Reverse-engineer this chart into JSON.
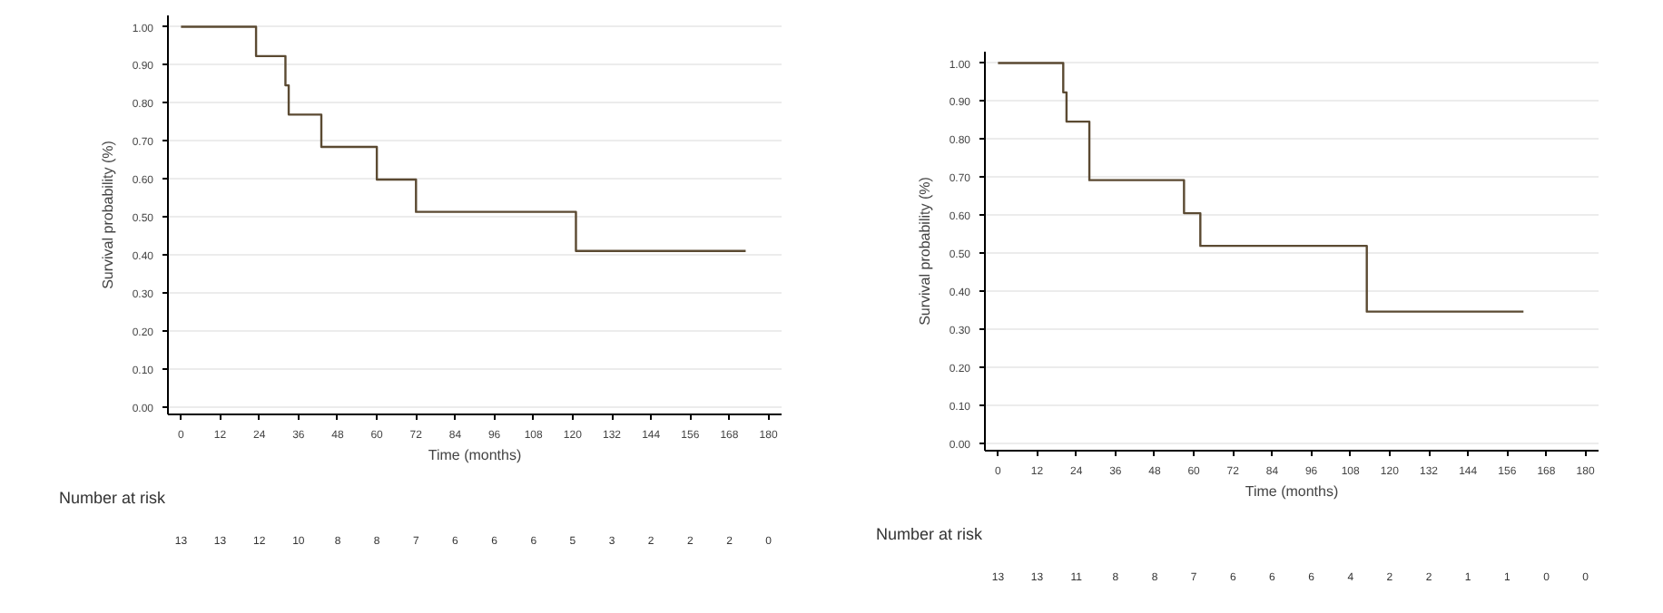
{
  "chart_data": [
    {
      "type": "step",
      "xlabel": "Time (months)",
      "ylabel": "Survival probability (%)",
      "xlim": [
        -4,
        184
      ],
      "ylim": [
        -0.02,
        1.03
      ],
      "xticks": [
        0,
        12,
        24,
        36,
        48,
        60,
        72,
        84,
        96,
        108,
        120,
        132,
        144,
        156,
        168,
        180
      ],
      "yticks": [
        {
          "value": 0,
          "label": "0.00"
        },
        {
          "value": 0.1,
          "label": "0.10"
        },
        {
          "value": 0.2,
          "label": "0.20"
        },
        {
          "value": 0.3,
          "label": "0.30"
        },
        {
          "value": 0.4,
          "label": "0.40"
        },
        {
          "value": 0.5,
          "label": "0.50"
        },
        {
          "value": 0.6,
          "label": "0.60"
        },
        {
          "value": 0.7,
          "label": "0.70"
        },
        {
          "value": 0.8,
          "label": "0.80"
        },
        {
          "value": 0.9,
          "label": "0.90"
        },
        {
          "value": 1,
          "label": "1.00"
        }
      ],
      "grid": "y",
      "x": [
        0,
        23,
        32,
        33,
        43,
        60,
        72,
        121,
        173
      ],
      "series": [
        {
          "color": "#5b4a32",
          "values": [
            1.0,
            0.923,
            0.846,
            0.769,
            0.684,
            0.598,
            0.513,
            0.41,
            0.41
          ]
        }
      ],
      "annotations": [
        "Number at risk",
        "13",
        "13",
        "12",
        "10",
        "8",
        "8",
        "7",
        "6",
        "6",
        "6",
        "5",
        "3",
        "2",
        "2",
        "2",
        "0"
      ]
    },
    {
      "type": "step",
      "xlabel": "Time (months)",
      "ylabel": "Survival probability (%)",
      "xlim": [
        -4,
        184
      ],
      "ylim": [
        -0.02,
        1.03
      ],
      "xticks": [
        0,
        12,
        24,
        36,
        48,
        60,
        72,
        84,
        96,
        108,
        120,
        132,
        144,
        156,
        168,
        180
      ],
      "yticks": [
        {
          "value": 0,
          "label": "0.00"
        },
        {
          "value": 0.1,
          "label": "0.10"
        },
        {
          "value": 0.2,
          "label": "0.20"
        },
        {
          "value": 0.3,
          "label": "0.30"
        },
        {
          "value": 0.4,
          "label": "0.40"
        },
        {
          "value": 0.5,
          "label": "0.50"
        },
        {
          "value": 0.6,
          "label": "0.60"
        },
        {
          "value": 0.7,
          "label": "0.70"
        },
        {
          "value": 0.8,
          "label": "0.80"
        },
        {
          "value": 0.9,
          "label": "0.90"
        },
        {
          "value": 1,
          "label": "1.00"
        }
      ],
      "grid": "y",
      "x": [
        0,
        20,
        21,
        28,
        57,
        62,
        113,
        161
      ],
      "series": [
        {
          "color": "#5b4a32",
          "values": [
            1.0,
            0.923,
            0.846,
            0.692,
            0.605,
            0.519,
            0.346,
            0.346
          ]
        }
      ],
      "annotations": [
        "Number at risk",
        "13",
        "13",
        "11",
        "8",
        "8",
        "7",
        "6",
        "6",
        "6",
        "4",
        "2",
        "2",
        "1",
        "1",
        "0",
        "0"
      ]
    }
  ]
}
